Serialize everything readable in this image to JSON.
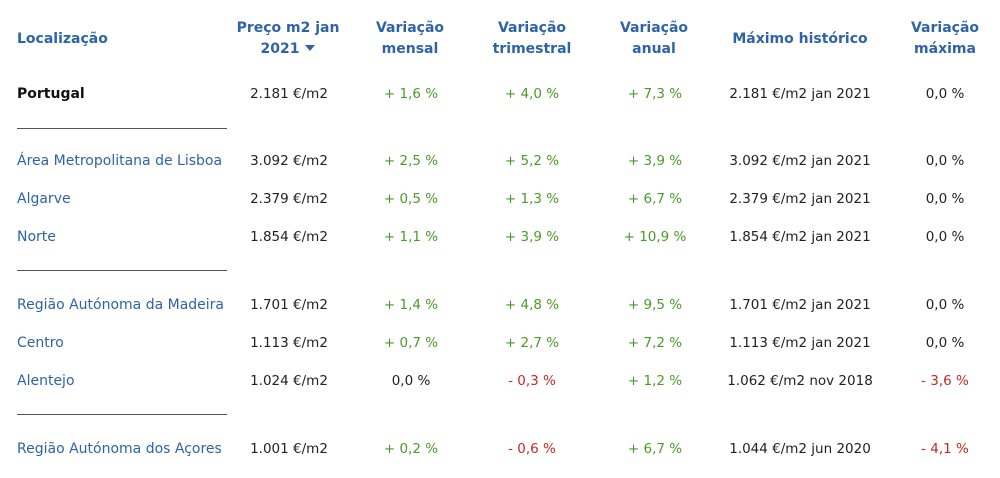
{
  "headers": {
    "location": "Localização",
    "price_line1": "Preço m2 jan",
    "price_line2": "2021",
    "monthly_line1": "Variação",
    "monthly_line2": "mensal",
    "quarterly_line1": "Variação",
    "quarterly_line2": "trimestral",
    "annual_line1": "Variação",
    "annual_line2": "anual",
    "max": "Máximo histórico",
    "maxvar_line1": "Variação",
    "maxvar_line2": "máxima"
  },
  "sort_icon": "sort-descending-icon",
  "colors": {
    "header": "#2e63a8",
    "positive": "#4c9a2a",
    "negative": "#c62828",
    "text": "#222222"
  },
  "rows": [
    {
      "location": "Portugal",
      "bold": true,
      "price": "2.181 €/m2",
      "monthly": "+ 1,6 %",
      "quarterly": "+ 4,0 %",
      "annual": "+ 7,3 %",
      "max": "2.181 €/m2 jan 2021",
      "maxvar": "0,0 %",
      "monthly_sign": "pos",
      "quarterly_sign": "pos",
      "annual_sign": "pos",
      "maxvar_sign": "neu"
    },
    {
      "location": "Área Metropolitana de Lisboa",
      "price": "3.092 €/m2",
      "monthly": "+ 2,5 %",
      "quarterly": "+ 5,2 %",
      "annual": "+ 3,9 %",
      "max": "3.092 €/m2 jan 2021",
      "maxvar": "0,0 %",
      "monthly_sign": "pos",
      "quarterly_sign": "pos",
      "annual_sign": "pos",
      "maxvar_sign": "neu"
    },
    {
      "location": "Algarve",
      "price": "2.379 €/m2",
      "monthly": "+ 0,5 %",
      "quarterly": "+ 1,3 %",
      "annual": "+ 6,7 %",
      "max": "2.379 €/m2 jan 2021",
      "maxvar": "0,0 %",
      "monthly_sign": "pos",
      "quarterly_sign": "pos",
      "annual_sign": "pos",
      "maxvar_sign": "neu"
    },
    {
      "location": "Norte",
      "price": "1.854 €/m2",
      "monthly": "+ 1,1 %",
      "quarterly": "+ 3,9 %",
      "annual": "+ 10,9 %",
      "max": "1.854 €/m2 jan 2021",
      "maxvar": "0,0 %",
      "monthly_sign": "pos",
      "quarterly_sign": "pos",
      "annual_sign": "pos",
      "maxvar_sign": "neu"
    },
    {
      "location": "Região Autónoma da Madeira",
      "price": "1.701 €/m2",
      "monthly": "+ 1,4 %",
      "quarterly": "+ 4,8 %",
      "annual": "+ 9,5 %",
      "max": "1.701 €/m2 jan 2021",
      "maxvar": "0,0 %",
      "monthly_sign": "pos",
      "quarterly_sign": "pos",
      "annual_sign": "pos",
      "maxvar_sign": "neu"
    },
    {
      "location": "Centro",
      "price": "1.113 €/m2",
      "monthly": "+ 0,7 %",
      "quarterly": "+ 2,7 %",
      "annual": "+ 7,2 %",
      "max": "1.113 €/m2 jan 2021",
      "maxvar": "0,0 %",
      "monthly_sign": "pos",
      "quarterly_sign": "pos",
      "annual_sign": "pos",
      "maxvar_sign": "neu"
    },
    {
      "location": "Alentejo",
      "price": "1.024 €/m2",
      "monthly": "0,0 %",
      "quarterly": "- 0,3 %",
      "annual": "+ 1,2 %",
      "max": "1.062 €/m2 nov 2018",
      "maxvar": "- 3,6 %",
      "monthly_sign": "neu",
      "quarterly_sign": "neg",
      "annual_sign": "pos",
      "maxvar_sign": "neg"
    },
    {
      "location": "Região Autónoma dos Açores",
      "price": "1.001 €/m2",
      "monthly": "+ 0,2 %",
      "quarterly": "- 0,6 %",
      "annual": "+ 6,7 %",
      "max": "1.044 €/m2 jun 2020",
      "maxvar": "- 4,1 %",
      "monthly_sign": "pos",
      "quarterly_sign": "neg",
      "annual_sign": "pos",
      "maxvar_sign": "neg"
    }
  ]
}
